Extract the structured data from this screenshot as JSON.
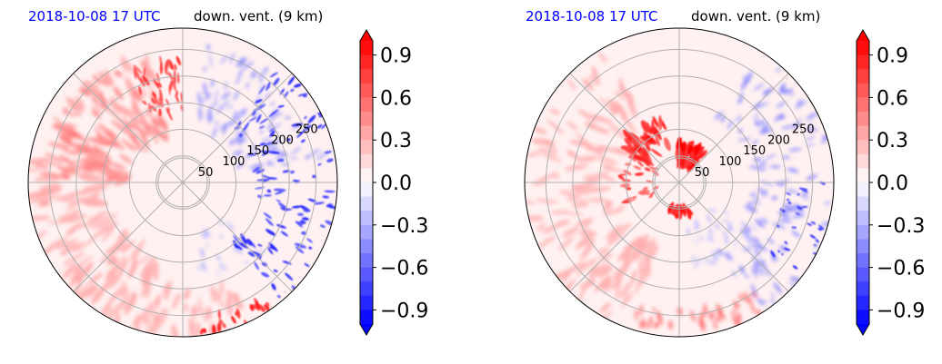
{
  "figure": {
    "panels": [
      {
        "time_label": "2018-10-08 17 UTC",
        "variable_label": "down. vent. (9 km)"
      },
      {
        "time_label": "2018-10-08 17 UTC",
        "variable_label": "down. vent. (9 km)"
      }
    ]
  },
  "colors": {
    "time_label": "#0000ff",
    "text": "#000000",
    "grid": "#b0b0b0",
    "colormap_low": "#0000ff",
    "colormap_mid": "#ffffff",
    "colormap_high": "#ff0000"
  },
  "chart_data": [
    {
      "type": "heatmap",
      "projection": "polar",
      "title_left": "2018-10-08 17 UTC",
      "title_right": "down. vent. (9 km)",
      "radial_ticks": [
        50,
        100,
        150,
        200,
        250
      ],
      "grid": true,
      "colorbar": {
        "ticks": [
          0.9,
          0.6,
          0.3,
          0.0,
          -0.3,
          -0.6,
          -0.9
        ],
        "tick_labels": [
          "0.9",
          "0.6",
          "0.3",
          "0.0",
          "−0.3",
          "−0.6",
          "−0.9"
        ],
        "range": [
          -1.0,
          1.0
        ],
        "extend": "both",
        "cmap": "bwr"
      },
      "features": [
        {
          "region": "east sector, radius 150-250",
          "sign": "negative",
          "value": -0.8
        },
        {
          "region": "north-northeast sector, radius 120-250",
          "sign": "negative",
          "value": -0.4
        },
        {
          "region": "west and northwest sectors, radius 100-250",
          "sign": "positive",
          "value": 0.4
        },
        {
          "region": "north-northwest sector, radius 150-250",
          "sign": "positive",
          "value": 0.7
        },
        {
          "region": "southwest and south sectors, radius 150-270",
          "sign": "positive",
          "value": 0.3
        },
        {
          "region": "south-southeast outer edge",
          "sign": "positive",
          "value": 0.8
        }
      ]
    },
    {
      "type": "heatmap",
      "projection": "polar",
      "title_left": "2018-10-08 17 UTC",
      "title_right": "down. vent. (9 km)",
      "radial_ticks": [
        50,
        100,
        150,
        200,
        250
      ],
      "grid": true,
      "colorbar": {
        "ticks": [
          0.9,
          0.6,
          0.3,
          0.0,
          -0.3,
          -0.6,
          -0.9
        ],
        "tick_labels": [
          "0.9",
          "0.6",
          "0.3",
          "0.0",
          "−0.3",
          "−0.6",
          "−0.9"
        ],
        "range": [
          -1.0,
          1.0
        ],
        "extend": "both",
        "cmap": "bwr"
      },
      "features": [
        {
          "region": "north, radius 30-80 (compact ring)",
          "sign": "positive",
          "value": 0.95
        },
        {
          "region": "northwest, radius 60-120",
          "sign": "positive",
          "value": 0.8
        },
        {
          "region": "south, radius 40-60",
          "sign": "positive",
          "value": 0.9
        },
        {
          "region": "east and northeast sectors, radius 150-250",
          "sign": "negative",
          "value": -0.5
        },
        {
          "region": "west and southwest sectors, radius 120-270",
          "sign": "positive",
          "value": 0.3
        },
        {
          "region": "outer edge south and southeast",
          "sign": "positive",
          "value": 0.6
        }
      ]
    }
  ]
}
